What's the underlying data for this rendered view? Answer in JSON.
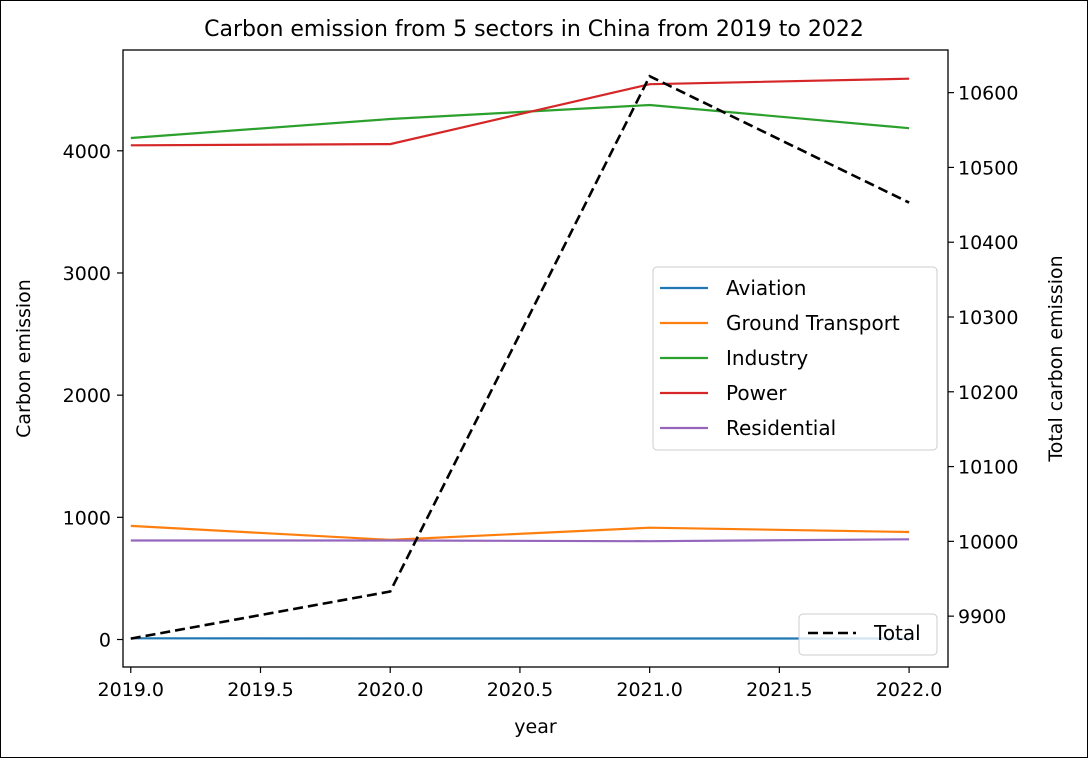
{
  "chart_data": {
    "type": "line",
    "title": "Carbon emission from 5 sectors in China from 2019 to 2022",
    "xlabel": "year",
    "ylabel": "Carbon emission",
    "y2label": "Total carbon emission",
    "x": [
      2019,
      2020,
      2021,
      2022
    ],
    "xlim": [
      2018.97,
      2022.15
    ],
    "xticks": [
      2019.0,
      2019.5,
      2020.0,
      2020.5,
      2021.0,
      2021.5,
      2022.0
    ],
    "xtick_labels": [
      "2019.0",
      "2019.5",
      "2020.0",
      "2020.5",
      "2021.0",
      "2021.5",
      "2022.0"
    ],
    "ylim": [
      -225,
      4825
    ],
    "yticks": [
      0,
      1000,
      2000,
      3000,
      4000
    ],
    "ytick_labels": [
      "0",
      "1000",
      "2000",
      "3000",
      "4000"
    ],
    "y2lim": [
      9832,
      10657
    ],
    "y2ticks": [
      9900,
      10000,
      10100,
      10200,
      10300,
      10400,
      10500,
      10600
    ],
    "y2tick_labels": [
      "9900",
      "10000",
      "10100",
      "10200",
      "10300",
      "10400",
      "10500",
      "10600"
    ],
    "grid": false,
    "series": [
      {
        "name": "Aviation",
        "axis": "left",
        "color": "#1f77b4",
        "style": "solid",
        "values": [
          10,
          8,
          8,
          8
        ]
      },
      {
        "name": "Ground Transport",
        "axis": "left",
        "color": "#ff7f0e",
        "style": "solid",
        "values": [
          930,
          815,
          915,
          880
        ]
      },
      {
        "name": "Industry",
        "axis": "left",
        "color": "#2ca02c",
        "style": "solid",
        "values": [
          4105,
          4260,
          4375,
          4185
        ]
      },
      {
        "name": "Power",
        "axis": "left",
        "color": "#d62728",
        "style": "solid",
        "values": [
          4045,
          4055,
          4545,
          4590
        ]
      },
      {
        "name": "Residential",
        "axis": "left",
        "color": "#9467bd",
        "style": "solid",
        "values": [
          810,
          810,
          805,
          820
        ]
      },
      {
        "name": "Total",
        "axis": "right",
        "color": "#000000",
        "style": "dashed",
        "values": [
          9870,
          9933,
          10622,
          10453
        ]
      }
    ],
    "legend": {
      "left_placement": "center-right",
      "right_placement": "lower-right",
      "left_entries": [
        "Aviation",
        "Ground Transport",
        "Industry",
        "Power",
        "Residential"
      ],
      "right_entries": [
        "Total"
      ]
    }
  }
}
